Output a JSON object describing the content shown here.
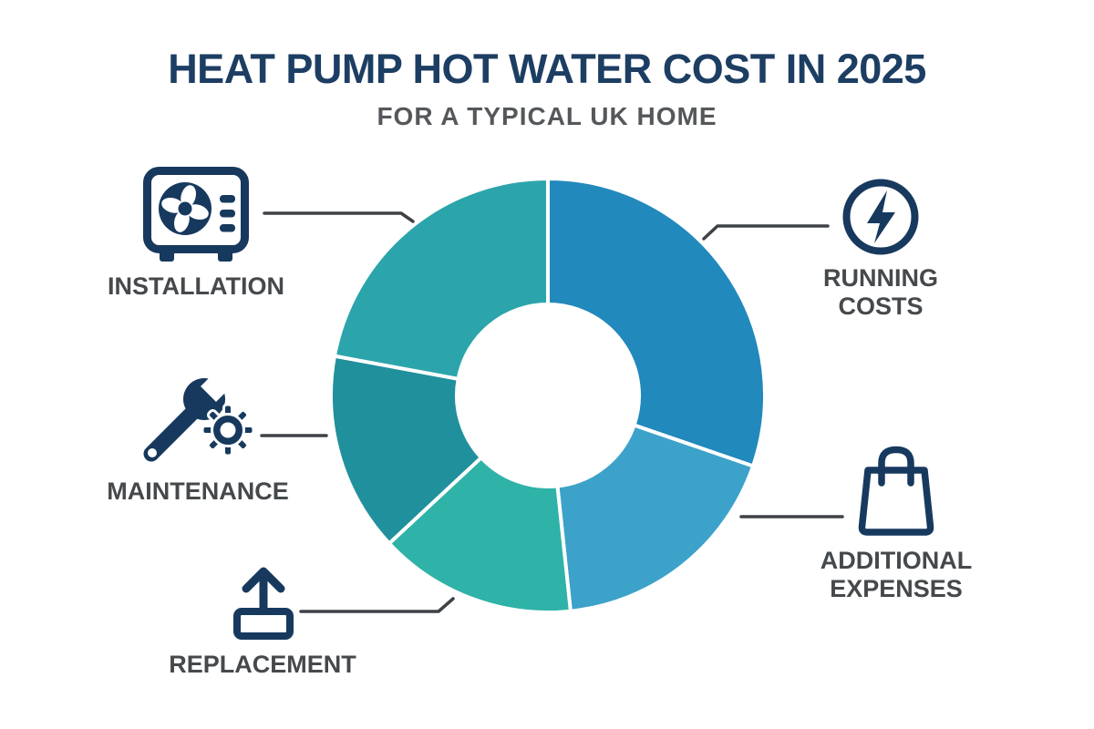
{
  "header": {
    "title": "HEAT PUMP HOT WATER COST IN 2025",
    "subtitle": "FOR A TYPICAL UK HOME"
  },
  "callouts": [
    {
      "id": "installation",
      "label": "INSTALLATION",
      "icon": "heat-pump-icon",
      "position": "top-left"
    },
    {
      "id": "running-costs",
      "label": "RUNNING COSTS",
      "icon": "lightning-bolt-icon",
      "position": "top-right"
    },
    {
      "id": "maintenance",
      "label": "MAINTENANCE",
      "icon": "wrench-and-gear-icon",
      "position": "middle-left"
    },
    {
      "id": "replacement",
      "label": "REPLACEMENT",
      "icon": "upload-arrow-icon",
      "position": "bottom-left"
    },
    {
      "id": "additional-expenses",
      "label": "ADDITIONAL EXPENSES",
      "icon": "shopping-bag-icon",
      "position": "bottom-right"
    }
  ],
  "chart_data": {
    "type": "pie",
    "variant": "donut",
    "title": "Heat pump hot water cost breakdown (no numeric labels shown)",
    "inner_radius_ratio": 0.42,
    "gap_color": "#ffffff",
    "rotation_zero_at": "12-oclock-clockwise",
    "segments": [
      {
        "id": "running-costs",
        "name": "RUNNING COSTS",
        "start_deg": 0,
        "end_deg": 109,
        "sweep_deg": 109,
        "percent": 30.3,
        "color": "#2189bc"
      },
      {
        "id": "additional-expenses",
        "name": "ADDITIONAL EXPENSES",
        "start_deg": 109,
        "end_deg": 174,
        "sweep_deg": 65,
        "percent": 18.1,
        "color": "#3ca2c9"
      },
      {
        "id": "replacement",
        "name": "REPLACEMENT",
        "start_deg": 174,
        "end_deg": 227,
        "sweep_deg": 53,
        "percent": 14.7,
        "color": "#2fb2a7"
      },
      {
        "id": "maintenance",
        "name": "MAINTENANCE",
        "start_deg": 227,
        "end_deg": 280.5,
        "sweep_deg": 53.5,
        "percent": 14.9,
        "color": "#20909c"
      },
      {
        "id": "installation",
        "name": "INSTALLATION",
        "start_deg": 280.5,
        "end_deg": 360,
        "sweep_deg": 79.5,
        "percent": 22.1,
        "color": "#2ba5ab"
      }
    ]
  },
  "colors": {
    "background": "#ffffff",
    "title": "#1d3e63",
    "subtitle": "#55585b",
    "label": "#45494c",
    "icon": "#17395e",
    "connector": "#3e4246"
  }
}
